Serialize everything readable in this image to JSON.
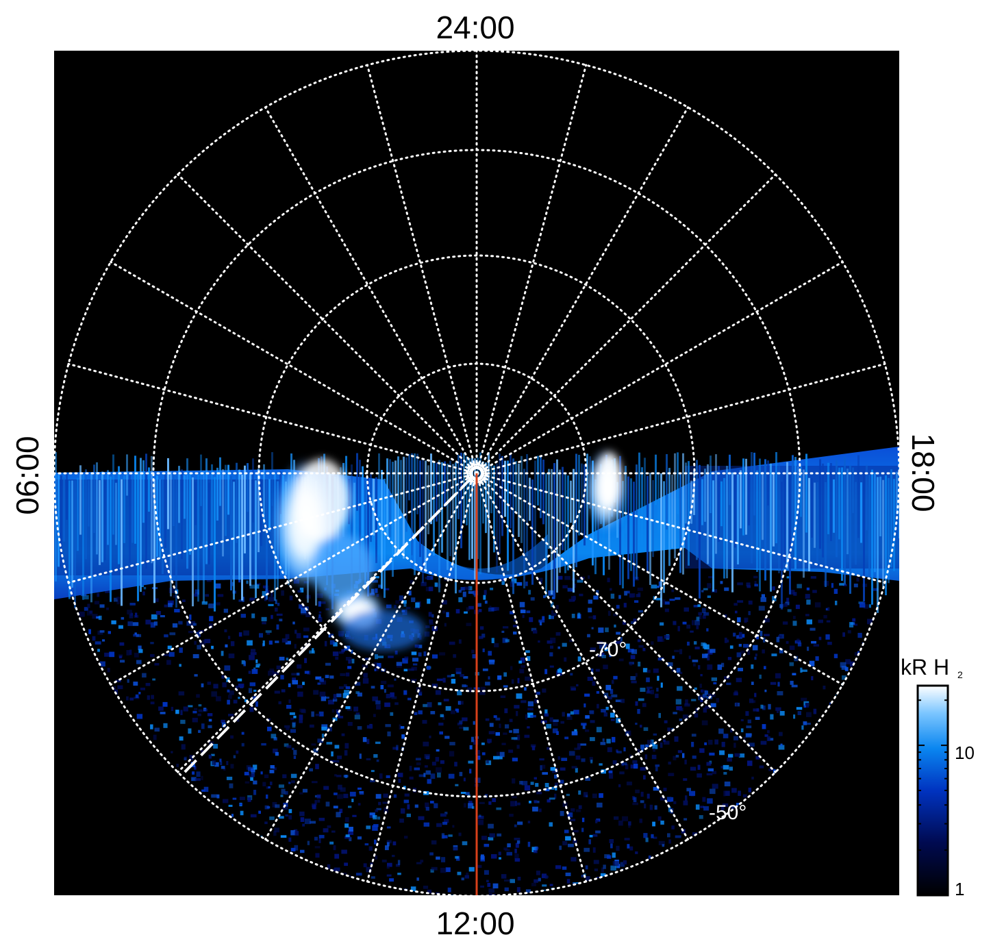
{
  "chart_data": {
    "type": "heatmap",
    "projection": "polar",
    "local_time_labels": {
      "top": "24:00",
      "bottom": "12:00",
      "left": "06:00",
      "right": "18:00"
    },
    "latitude_labels": [
      "-70°",
      "-50°"
    ],
    "colorbar": {
      "label_main": "kR H",
      "label_sub": "2",
      "scale": "log",
      "ticks": [
        "1",
        "10"
      ],
      "range": [
        1,
        25
      ],
      "colors": [
        "#000000",
        "#000a50",
        "#0033c0",
        "#0a86f0",
        "#7cc6ff",
        "#ffffff"
      ]
    },
    "grid": true,
    "colors": {
      "background": "#000000",
      "grid": "#ffffff",
      "meridian_line": "#d8401a",
      "dashed_line": "#ffffff"
    }
  }
}
